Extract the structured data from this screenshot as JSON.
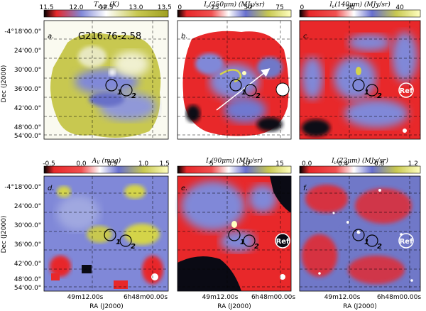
{
  "figure": {
    "source_name": "G216.76-2.58",
    "dec_ticks": [
      "-4°18'00.0\"",
      "24'00.0\"",
      "30'00.0\"",
      "36'00.0\"",
      "42'00.0\"",
      "48'00.0\"",
      "54'00.0\""
    ],
    "ra_ticks": [
      "49m12.00s",
      "6h48m00.00s"
    ],
    "ylabel": "Dec (J2000)",
    "xlabel": "RA (J2000)",
    "ref_label": "Ref",
    "region_labels": [
      "1",
      "2"
    ]
  },
  "panels": [
    {
      "id": "a",
      "label": "a.",
      "cb_label": "T_dust (K)",
      "cb_ticks": [
        "11.5",
        "12.0",
        "12.5",
        "13.0",
        "13.5"
      ],
      "colormap": "olive-white-blue-red"
    },
    {
      "id": "b",
      "label": "b.",
      "cb_label": "I_v(250μm) (MJy/sr)",
      "cb_ticks": [
        "0",
        "25",
        "50",
        "75"
      ],
      "colormap": "red-blue-yellow"
    },
    {
      "id": "c",
      "label": "c.",
      "cb_label": "I_v(140μm) (MJy/sr)",
      "cb_ticks": [
        "0",
        "20",
        "40"
      ],
      "colormap": "red-blue-yellow"
    },
    {
      "id": "d",
      "label": "d.",
      "cb_label": "A_V (mag)",
      "cb_ticks": [
        "-0.5",
        "0.0",
        "0.5",
        "1.0",
        "1.5"
      ],
      "colormap": "red-blue-yellow"
    },
    {
      "id": "e",
      "label": "e.",
      "cb_label": "I_v(90μm) (MJy/sr)",
      "cb_ticks": [
        "5",
        "10",
        "15"
      ],
      "colormap": "red-blue-yellow"
    },
    {
      "id": "f",
      "label": "f.",
      "cb_label": "I_v(22μm) (MJy/sr)",
      "cb_ticks": [
        "0.0",
        "0.4",
        "0.8",
        "1.2"
      ],
      "colormap": "red-blue-yellow"
    }
  ],
  "colors": {
    "red": "#e8282a",
    "blue": "#8088d8",
    "yellow": "#d4d44a",
    "dark": "#0a0a14",
    "olive": "#b8b840"
  }
}
